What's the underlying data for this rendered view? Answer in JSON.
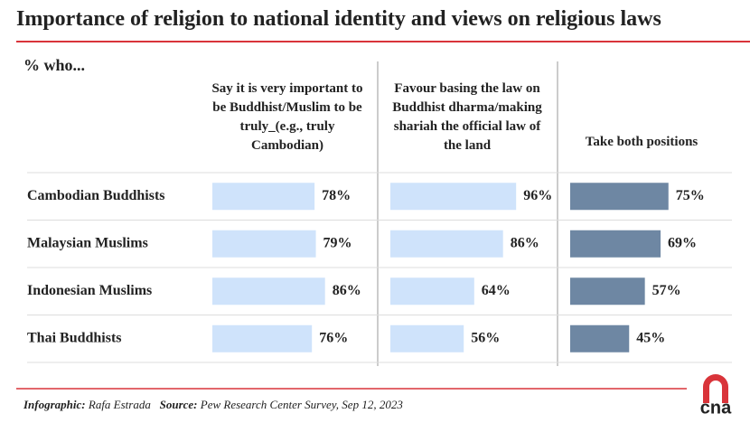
{
  "chart_data": {
    "type": "bar",
    "title": "Importance of religion to national identity and views on religious laws",
    "subtitle": "% who...",
    "categories": [
      "Cambodian Buddhists",
      "Malaysian Muslims",
      "Indonesian Muslims",
      "Thai Buddhists"
    ],
    "series": [
      {
        "name": "Say it is very important to be Buddhist/Muslim to be truly_(e.g., truly Cambodian)",
        "color": "#cfe3fb",
        "values": [
          78,
          79,
          86,
          76
        ],
        "value_labels": [
          "78%",
          "79%",
          "86%",
          "76%"
        ]
      },
      {
        "name": "Favour basing the law on Buddhist dharma/making shariah the official law of the land",
        "color": "#cfe3fb",
        "values": [
          96,
          86,
          64,
          56
        ],
        "value_labels": [
          "96%",
          "86%",
          "64%",
          "56%"
        ]
      },
      {
        "name": "Take both positions",
        "color": "#6e87a3",
        "values": [
          75,
          69,
          57,
          45
        ],
        "value_labels": [
          "75%",
          "69%",
          "57%",
          "45%"
        ]
      }
    ]
  },
  "footer": {
    "credit_label": "Infographic:",
    "credit": "Rafa Estrada",
    "source_label": "Source:",
    "source": "Pew Research Center Survey, Sep 12, 2023"
  },
  "logo": "cna"
}
